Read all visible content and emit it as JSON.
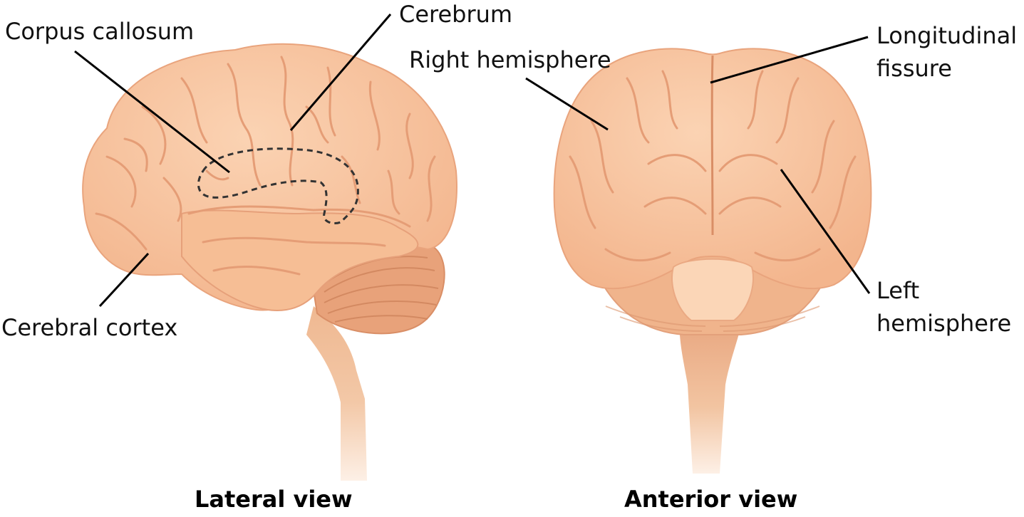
{
  "labels": {
    "corpus_callosum": "Corpus callosum",
    "cerebrum": "Cerebrum",
    "cerebral_cortex": "Cerebral cortex",
    "right_hemisphere": "Right hemisphere",
    "longitudinal_fissure_1": "Longitudinal",
    "longitudinal_fissure_2": "fissure",
    "left_hemisphere_1": "Left",
    "left_hemisphere_2": "hemisphere"
  },
  "titles": {
    "lateral": "Lateral view",
    "anterior": "Anterior view"
  },
  "colors": {
    "brain": "#f7c39c",
    "brain_dark": "#e9a47d",
    "brain_light": "#fbd7b9",
    "cerebellum": "#e9a47d",
    "stem": "#efb891",
    "leader": "#000000"
  }
}
